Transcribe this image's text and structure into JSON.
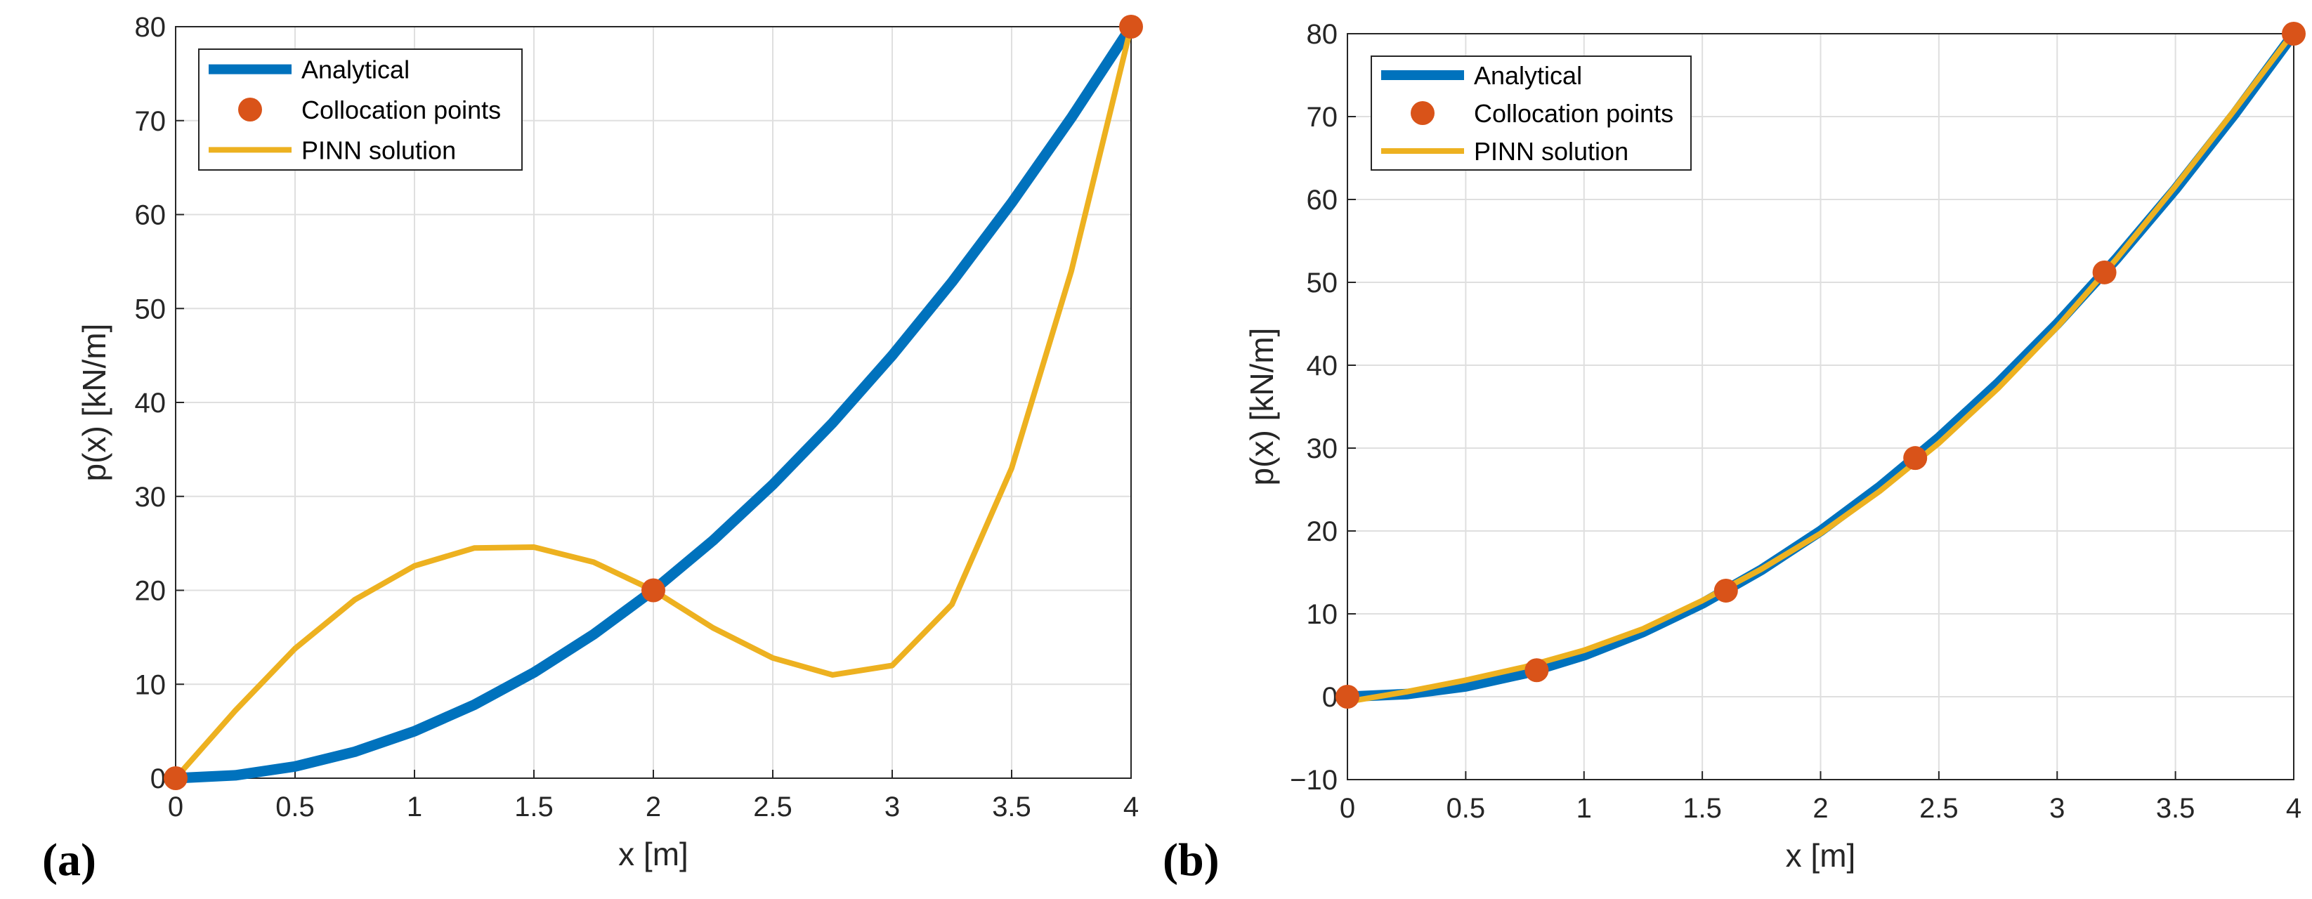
{
  "chart_data": [
    {
      "type": "line",
      "panel_label": "(a)",
      "xlabel": "x [m]",
      "ylabel": "p(x) [kN/m]",
      "xlim": [
        0,
        4
      ],
      "ylim": [
        0,
        80
      ],
      "xticks": [
        0,
        0.5,
        1,
        1.5,
        2,
        2.5,
        3,
        3.5,
        4
      ],
      "xticklabels": [
        "0",
        "0.5",
        "1",
        "1.5",
        "2",
        "2.5",
        "3",
        "3.5",
        "4"
      ],
      "yticks": [
        0,
        10,
        20,
        30,
        40,
        50,
        60,
        70,
        80
      ],
      "yticklabels": [
        "0",
        "10",
        "20",
        "30",
        "40",
        "50",
        "60",
        "70",
        "80"
      ],
      "grid": true,
      "legend_position": "top-left",
      "series": [
        {
          "name": "Analytical",
          "style": "line",
          "color": "#0072BD",
          "x": [
            0,
            0.25,
            0.5,
            0.75,
            1,
            1.25,
            1.5,
            1.75,
            2,
            2.25,
            2.5,
            2.75,
            3,
            3.25,
            3.5,
            3.75,
            4
          ],
          "y": [
            0,
            0.31,
            1.25,
            2.81,
            5,
            7.81,
            11.25,
            15.31,
            20,
            25.31,
            31.25,
            37.81,
            45,
            52.81,
            61.25,
            70.31,
            80
          ]
        },
        {
          "name": "Collocation points",
          "style": "marker",
          "color": "#D95319",
          "x": [
            0,
            2,
            4
          ],
          "y": [
            0,
            20,
            80
          ]
        },
        {
          "name": "PINN solution",
          "style": "line",
          "color": "#EDB120",
          "x": [
            0,
            0.25,
            0.5,
            0.75,
            1,
            1.25,
            1.5,
            1.75,
            2,
            2.25,
            2.5,
            2.75,
            3,
            3.25,
            3.5,
            3.75,
            4
          ],
          "y": [
            0,
            7.2,
            13.8,
            19.0,
            22.6,
            24.5,
            24.6,
            23.0,
            20.0,
            16.0,
            12.8,
            11.0,
            12.0,
            18.5,
            33.0,
            54.0,
            80.0
          ]
        }
      ]
    },
    {
      "type": "line",
      "panel_label": "(b)",
      "xlabel": "x [m]",
      "ylabel": "p(x) [kN/m]",
      "xlim": [
        0,
        4
      ],
      "ylim": [
        -10,
        80
      ],
      "xticks": [
        0,
        0.5,
        1,
        1.5,
        2,
        2.5,
        3,
        3.5,
        4
      ],
      "xticklabels": [
        "0",
        "0.5",
        "1",
        "1.5",
        "2",
        "2.5",
        "3",
        "3.5",
        "4"
      ],
      "yticks": [
        -10,
        0,
        10,
        20,
        30,
        40,
        50,
        60,
        70,
        80
      ],
      "yticklabels": [
        "−10",
        "0",
        "10",
        "20",
        "30",
        "40",
        "50",
        "60",
        "70",
        "80"
      ],
      "grid": true,
      "legend_position": "top-left",
      "series": [
        {
          "name": "Analytical",
          "style": "line",
          "color": "#0072BD",
          "x": [
            0,
            0.25,
            0.5,
            0.75,
            1,
            1.25,
            1.5,
            1.75,
            2,
            2.25,
            2.5,
            2.75,
            3,
            3.25,
            3.5,
            3.75,
            4
          ],
          "y": [
            0,
            0.31,
            1.25,
            2.81,
            5,
            7.81,
            11.25,
            15.31,
            20,
            25.31,
            31.25,
            37.81,
            45,
            52.81,
            61.25,
            70.31,
            80
          ]
        },
        {
          "name": "Collocation points",
          "style": "marker",
          "color": "#D95319",
          "x": [
            0,
            0.8,
            1.6,
            2.4,
            3.2,
            4
          ],
          "y": [
            0,
            3.2,
            12.8,
            28.8,
            51.2,
            80
          ]
        },
        {
          "name": "PINN solution",
          "style": "line",
          "color": "#EDB120",
          "x": [
            0,
            0.25,
            0.5,
            0.75,
            1,
            1.25,
            1.5,
            1.75,
            2,
            2.25,
            2.5,
            2.75,
            3,
            3.25,
            3.5,
            3.75,
            4
          ],
          "y": [
            -0.6,
            0.6,
            2.0,
            3.6,
            5.6,
            8.2,
            11.6,
            15.4,
            19.7,
            24.8,
            30.6,
            37.2,
            44.6,
            52.8,
            61.6,
            70.8,
            80.2
          ]
        }
      ]
    }
  ]
}
